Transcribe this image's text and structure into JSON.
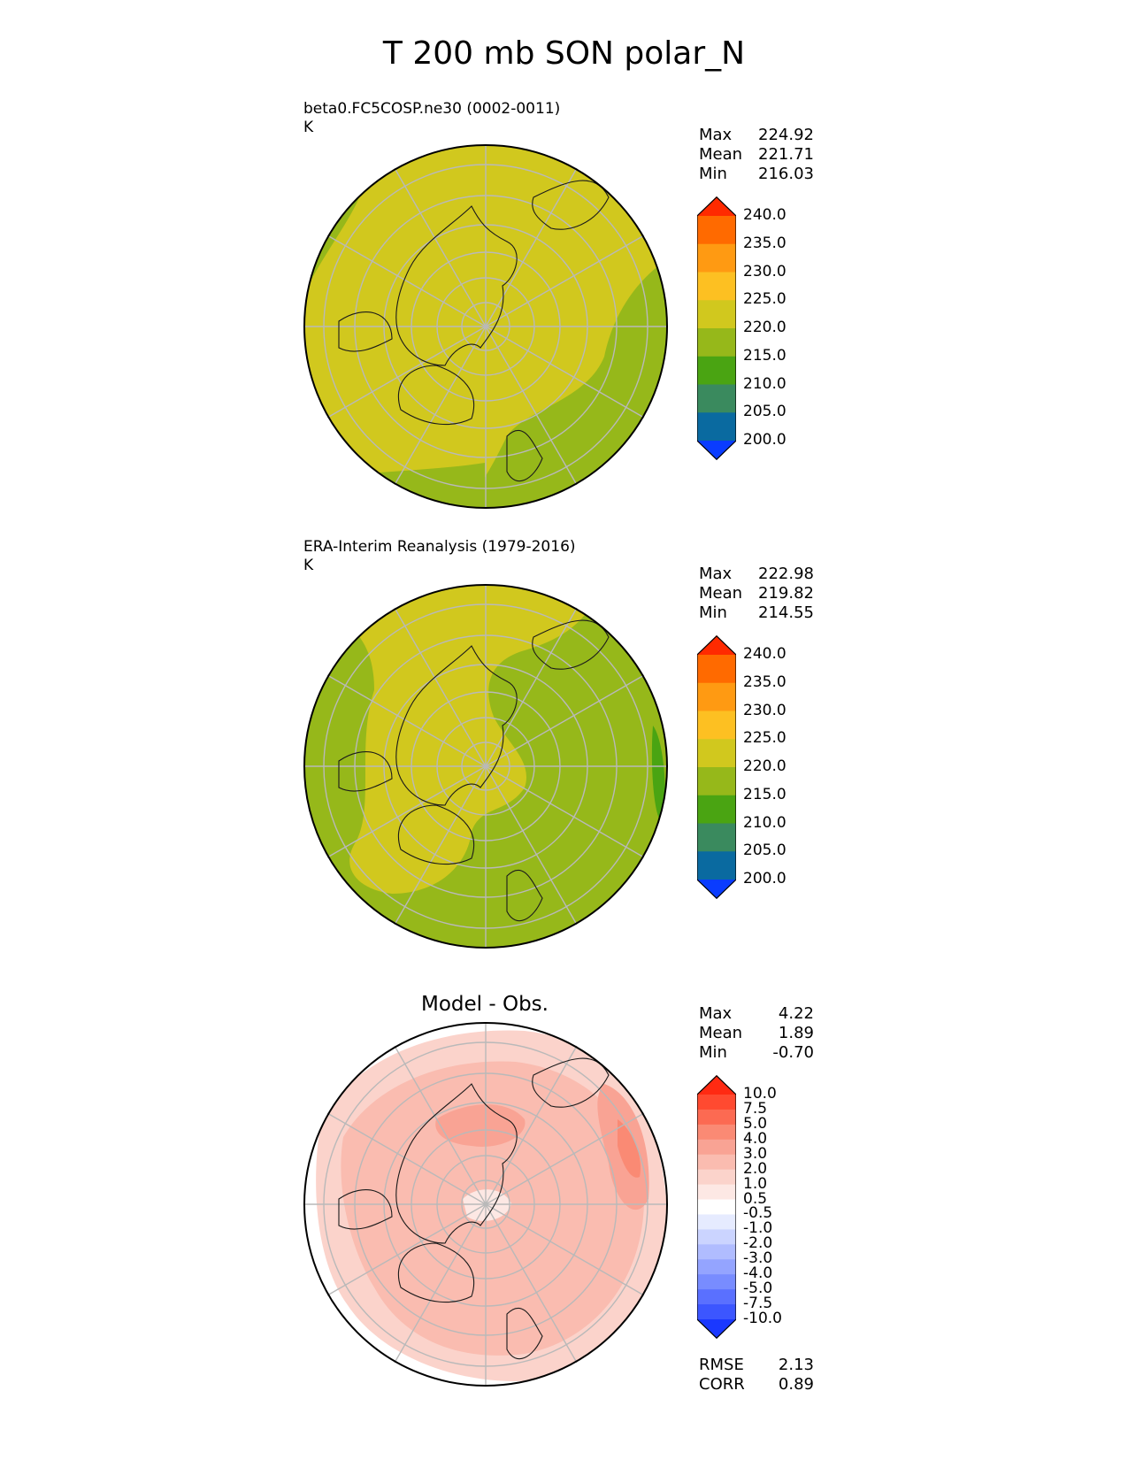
{
  "figure_title": "T 200 mb SON polar_N",
  "panels": [
    {
      "title": "beta0.FC5COSP.ne30 (0002-0011)",
      "units": "K",
      "stats": [
        {
          "label": "Max",
          "value": "224.92"
        },
        {
          "label": "Mean",
          "value": "221.71"
        },
        {
          "label": "Min",
          "value": "216.03"
        }
      ],
      "colorbar": {
        "levels": [
          "240.0",
          "235.0",
          "230.0",
          "225.0",
          "220.0",
          "215.0",
          "210.0",
          "205.0",
          "200.0"
        ],
        "colors": [
          "#ff2a00",
          "#ff6a00",
          "#ff9a12",
          "#fdc022",
          "#d1c81e",
          "#96b81a",
          "#4aa412",
          "#3a8a5e",
          "#0a6aa0",
          "#0a3cff"
        ]
      }
    },
    {
      "title": "ERA-Interim Reanalysis (1979-2016)",
      "units": "K",
      "stats": [
        {
          "label": "Max",
          "value": "222.98"
        },
        {
          "label": "Mean",
          "value": "219.82"
        },
        {
          "label": "Min",
          "value": "214.55"
        }
      ],
      "colorbar": {
        "levels": [
          "240.0",
          "235.0",
          "230.0",
          "225.0",
          "220.0",
          "215.0",
          "210.0",
          "205.0",
          "200.0"
        ],
        "colors": [
          "#ff2a00",
          "#ff6a00",
          "#ff9a12",
          "#fdc022",
          "#d1c81e",
          "#96b81a",
          "#4aa412",
          "#3a8a5e",
          "#0a6aa0",
          "#0a3cff"
        ]
      }
    },
    {
      "title": "Model - Obs.",
      "stats": [
        {
          "label": "Max",
          "value": "4.22"
        },
        {
          "label": "Mean",
          "value": "1.89"
        },
        {
          "label": "Min",
          "value": "-0.70"
        }
      ],
      "colorbar": {
        "levels": [
          "10.0",
          "7.5",
          "5.0",
          "4.0",
          "3.0",
          "2.0",
          "1.0",
          "0.5",
          "-0.5",
          "-1.0",
          "-2.0",
          "-3.0",
          "-4.0",
          "-5.0",
          "-7.5",
          "-10.0"
        ],
        "colors": [
          "#ff2a12",
          "#ff4a30",
          "#fc6a52",
          "#fa8a74",
          "#f9a394",
          "#fabcb0",
          "#fbd3cb",
          "#fde8e4",
          "#ffffff",
          "#e6ebff",
          "#cbd4ff",
          "#b0bcff",
          "#94a4ff",
          "#788cff",
          "#5a70ff",
          "#3c56ff",
          "#1a38ff"
        ]
      },
      "footer_stats": [
        {
          "label": "RMSE",
          "value": "2.13"
        },
        {
          "label": "CORR",
          "value": "0.89"
        }
      ]
    }
  ]
}
